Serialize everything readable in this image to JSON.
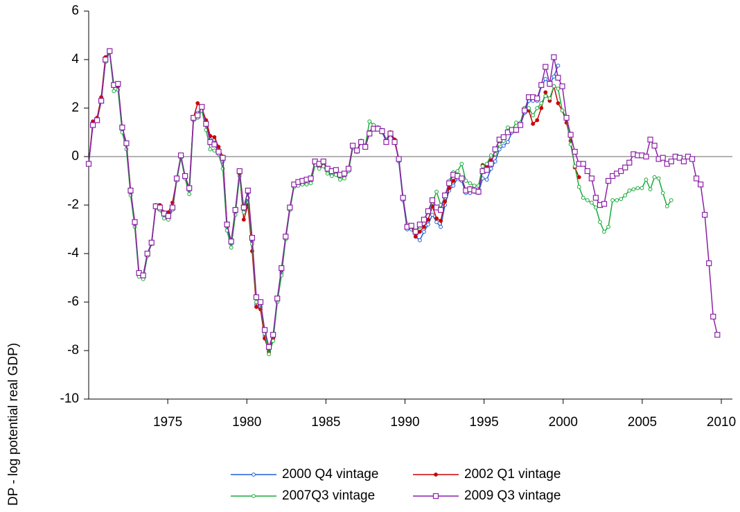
{
  "chart_data": {
    "type": "line",
    "y_label": "DP - log potential real GDP)",
    "x": [
      1970,
      1970.265,
      1970.53,
      1970.795,
      1971.06,
      1971.325,
      1971.59,
      1971.855,
      1972.12,
      1972.385,
      1972.65,
      1972.915,
      1973.18,
      1973.445,
      1973.71,
      1973.975,
      1974.24,
      1974.505,
      1974.77,
      1975.035,
      1975.3,
      1975.565,
      1975.83,
      1976.095,
      1976.36,
      1976.625,
      1976.89,
      1977.155,
      1977.42,
      1977.685,
      1977.95,
      1978.215,
      1978.48,
      1978.745,
      1979.01,
      1979.275,
      1979.54,
      1979.805,
      1980.07,
      1980.335,
      1980.6,
      1980.865,
      1981.13,
      1981.395,
      1981.66,
      1981.925,
      1982.19,
      1982.455,
      1982.72,
      1982.985,
      1983.25,
      1983.515,
      1983.78,
      1984.045,
      1984.31,
      1984.575,
      1984.84,
      1985.105,
      1985.37,
      1985.635,
      1985.9,
      1986.165,
      1986.43,
      1986.695,
      1986.96,
      1987.225,
      1987.49,
      1987.755,
      1988.02,
      1988.285,
      1988.55,
      1988.815,
      1989.08,
      1989.345,
      1989.61,
      1989.875,
      1990.14,
      1990.405,
      1990.67,
      1990.935,
      1991.2,
      1991.465,
      1991.73,
      1991.995,
      1992.26,
      1992.525,
      1992.79,
      1993.055,
      1993.32,
      1993.585,
      1993.85,
      1994.115,
      1994.38,
      1994.645,
      1994.91,
      1995.175,
      1995.44,
      1995.705,
      1995.97,
      1996.235,
      1996.5,
      1996.765,
      1997.03,
      1997.295,
      1997.56,
      1997.825,
      1998.09,
      1998.355,
      1998.62,
      1998.885,
      1999.15,
      1999.415,
      1999.68,
      1999.945,
      2000.21,
      2000.475,
      2000.74,
      2001.005,
      2001.27,
      2001.535,
      2001.8,
      2002.065,
      2002.33,
      2002.595,
      2002.86,
      2003.125,
      2003.39,
      2003.655,
      2003.92,
      2004.185,
      2004.45,
      2004.715,
      2004.98,
      2005.245,
      2005.51,
      2005.775,
      2006.04,
      2006.305,
      2006.57,
      2006.835,
      2007.1,
      2007.365,
      2007.63,
      2007.895,
      2008.16,
      2008.425,
      2008.69,
      2008.955,
      2009.22,
      2009.485,
      2009.75
    ],
    "series": [
      {
        "name": "2000 Q4 vintage",
        "color": "#1f5fd6",
        "marker": "open-circle",
        "values": [
          -0.3,
          1.4,
          1.5,
          2.3,
          3.9,
          4.3,
          2.9,
          2.9,
          1.1,
          0.5,
          -1.5,
          -2.8,
          -4.9,
          -5.0,
          -4.1,
          -3.6,
          -2.1,
          -2.2,
          -2.4,
          -2.5,
          -2.1,
          -0.95,
          0.0,
          -0.85,
          -1.4,
          1.5,
          1.8,
          2.0,
          1.4,
          0.7,
          0.7,
          0.3,
          -0.2,
          -2.9,
          -3.6,
          -2.3,
          -0.7,
          -2.2,
          -1.5,
          -3.5,
          -6.1,
          -6.2,
          -7.4,
          -8.0,
          -7.5,
          -6.0,
          -4.8,
          -3.4,
          -2.2,
          -1.2,
          -1.1,
          -1.1,
          -1.0,
          -1.0,
          -0.3,
          -0.4,
          -0.3,
          -0.6,
          -0.7,
          -0.6,
          -0.8,
          -0.8,
          -0.6,
          0.4,
          0.2,
          0.6,
          0.4,
          1.0,
          1.3,
          1.2,
          1.1,
          0.7,
          1.0,
          0.7,
          -0.2,
          -1.8,
          -3.0,
          -3.0,
          -3.3,
          -3.45,
          -3.1,
          -2.8,
          -2.4,
          -2.7,
          -2.9,
          -2.0,
          -1.4,
          -1.2,
          -0.9,
          -1.0,
          -1.5,
          -1.5,
          -1.45,
          -1.5,
          -0.9,
          -0.95,
          -0.5,
          -0.2,
          0.3,
          0.45,
          0.6,
          1.0,
          1.05,
          1.3,
          1.8,
          2.3,
          2.3,
          2.3,
          2.9,
          3.2,
          3.0,
          3.3,
          3.75,
          null,
          null,
          null,
          null,
          null,
          null,
          null,
          null,
          null,
          null,
          null,
          null,
          null,
          null,
          null,
          null,
          null,
          null,
          null,
          null,
          null,
          null,
          null,
          null,
          null,
          null,
          null,
          null,
          null,
          null,
          null,
          null,
          null,
          null,
          null,
          null,
          null,
          null
        ]
      },
      {
        "name": "2002 Q1 vintage",
        "color": "#cc0000",
        "marker": "filled-circle",
        "values": [
          -0.3,
          1.45,
          1.6,
          2.45,
          4.1,
          4.3,
          2.9,
          2.9,
          1.2,
          0.55,
          -1.4,
          -2.75,
          -4.85,
          -4.9,
          -4.0,
          -3.6,
          -2.0,
          -2.0,
          -2.3,
          -2.3,
          -1.9,
          -0.95,
          0.0,
          -0.85,
          -1.3,
          1.6,
          2.2,
          2.0,
          1.5,
          0.85,
          0.8,
          0.4,
          0.0,
          -2.8,
          -3.5,
          -2.2,
          -0.7,
          -2.6,
          -2.0,
          -3.9,
          -6.2,
          -6.3,
          -7.5,
          -8.05,
          -7.5,
          -5.9,
          -4.7,
          -3.3,
          -2.1,
          -1.2,
          -1.1,
          -1.05,
          -1.0,
          -1.0,
          -0.3,
          -0.4,
          -0.3,
          -0.5,
          -0.6,
          -0.55,
          -0.8,
          -0.75,
          -0.5,
          0.45,
          0.25,
          0.65,
          0.45,
          1.0,
          1.2,
          1.2,
          1.05,
          0.65,
          1.0,
          0.7,
          -0.1,
          -1.7,
          -2.9,
          -2.9,
          -3.3,
          -3.1,
          -2.9,
          -2.6,
          -2.05,
          -2.55,
          -2.65,
          -1.85,
          -1.3,
          -1.0,
          -0.8,
          -0.9,
          -1.4,
          -1.3,
          -1.35,
          -1.4,
          -0.35,
          -0.4,
          -0.15,
          0.1,
          0.6,
          0.8,
          1.0,
          1.1,
          1.1,
          1.35,
          2.0,
          1.9,
          1.35,
          1.5,
          2.0,
          2.65,
          2.3,
          2.9,
          2.2,
          1.9,
          1.4,
          0.65,
          -0.45,
          -0.85,
          null,
          null,
          null,
          null,
          null,
          null,
          null,
          null,
          null,
          null,
          null,
          null,
          null,
          null,
          null,
          null,
          null,
          null,
          null,
          null,
          null,
          null,
          null,
          null,
          null,
          null,
          null,
          null,
          null,
          null,
          null,
          null,
          null
        ]
      },
      {
        "name": "2007Q3 vintage",
        "color": "#1aaa3a",
        "marker": "open-circle",
        "values": [
          -0.3,
          1.3,
          1.5,
          2.3,
          3.9,
          4.3,
          2.7,
          2.75,
          1.0,
          0.3,
          -1.6,
          -2.9,
          -4.95,
          -5.05,
          -4.1,
          -3.55,
          -2.1,
          -2.2,
          -2.55,
          -2.6,
          -2.2,
          -1.0,
          -0.05,
          -0.9,
          -1.55,
          1.5,
          1.6,
          1.9,
          1.1,
          0.3,
          0.25,
          0.1,
          -0.5,
          -3.05,
          -3.75,
          -2.4,
          -0.8,
          -2.3,
          -1.7,
          -3.6,
          -6.0,
          -6.1,
          -7.3,
          -8.15,
          -7.6,
          -6.0,
          -4.9,
          -3.4,
          -2.2,
          -1.25,
          -1.2,
          -1.15,
          -1.15,
          -1.1,
          -0.35,
          -0.5,
          -0.4,
          -0.7,
          -0.8,
          -0.75,
          -0.95,
          -0.9,
          -0.6,
          0.35,
          0.2,
          0.65,
          0.45,
          1.45,
          1.3,
          1.2,
          1.0,
          0.65,
          0.95,
          0.6,
          -0.1,
          -1.7,
          -2.8,
          -2.9,
          -3.05,
          -2.9,
          -2.6,
          -2.3,
          -1.9,
          -1.45,
          -2.0,
          -1.7,
          -1.0,
          -0.65,
          -0.6,
          -0.3,
          -1.0,
          -1.1,
          -1.2,
          -1.2,
          -0.4,
          -0.3,
          0.05,
          0.1,
          0.5,
          0.65,
          1.2,
          1.1,
          1.4,
          1.4,
          2.0,
          2.0,
          1.7,
          2.0,
          2.2,
          2.5,
          2.4,
          2.9,
          2.8,
          1.9,
          1.6,
          0.5,
          -0.4,
          -1.25,
          -1.7,
          -1.8,
          -1.9,
          -2.1,
          -2.7,
          -3.1,
          -2.9,
          -1.8,
          -1.8,
          -1.75,
          -1.6,
          -1.4,
          -1.35,
          -1.3,
          -1.3,
          -0.95,
          -1.35,
          -0.85,
          -0.9,
          -1.5,
          -2.05,
          -1.8,
          null,
          null,
          null,
          null,
          null,
          null,
          null,
          null,
          null,
          null,
          null
        ]
      },
      {
        "name": "2009 Q3 vintage",
        "color": "#8b1fa6",
        "marker": "open-square",
        "values": [
          -0.3,
          1.3,
          1.5,
          2.3,
          4.0,
          4.35,
          2.95,
          3.0,
          1.2,
          0.55,
          -1.4,
          -2.7,
          -4.8,
          -4.9,
          -4.0,
          -3.55,
          -2.05,
          -2.1,
          -2.35,
          -2.45,
          -2.1,
          -0.9,
          0.05,
          -0.8,
          -1.3,
          1.6,
          1.7,
          2.05,
          1.35,
          0.6,
          0.5,
          0.2,
          -0.05,
          -2.8,
          -3.5,
          -2.2,
          -0.6,
          -2.1,
          -1.4,
          -3.35,
          -5.8,
          -6.0,
          -7.15,
          -7.85,
          -7.35,
          -5.85,
          -4.6,
          -3.3,
          -2.1,
          -1.15,
          -1.05,
          -1.0,
          -0.95,
          -0.9,
          -0.2,
          -0.3,
          -0.2,
          -0.5,
          -0.6,
          -0.55,
          -0.75,
          -0.7,
          -0.5,
          0.45,
          0.25,
          0.6,
          0.4,
          0.95,
          1.15,
          1.15,
          1.05,
          0.6,
          0.95,
          0.6,
          -0.1,
          -1.7,
          -2.9,
          -2.85,
          -3.1,
          -2.8,
          -2.6,
          -2.25,
          -1.8,
          -2.1,
          -2.2,
          -1.6,
          -1.1,
          -0.75,
          -0.8,
          -0.9,
          -1.4,
          -1.35,
          -1.4,
          -1.45,
          -0.6,
          -0.55,
          -0.3,
          0.3,
          0.7,
          0.8,
          1.0,
          1.1,
          1.1,
          1.3,
          1.9,
          2.45,
          2.45,
          2.4,
          2.95,
          3.7,
          3.0,
          4.1,
          3.25,
          2.9,
          1.6,
          0.9,
          0.2,
          -0.3,
          -0.3,
          -0.6,
          -0.9,
          -1.7,
          -2.0,
          -1.95,
          -1.0,
          -0.8,
          -0.7,
          -0.6,
          -0.45,
          -0.25,
          0.1,
          0.05,
          0.05,
          0.0,
          0.7,
          0.45,
          -0.1,
          -0.05,
          -0.3,
          -0.2,
          0.0,
          -0.05,
          -0.2,
          0.0,
          -0.1,
          -0.9,
          -1.15,
          -2.4,
          -4.4,
          -6.6,
          -7.35
        ]
      }
    ],
    "xlim": [
      1970,
      2010.7
    ],
    "xticks": [
      1975,
      1980,
      1985,
      1990,
      1995,
      2000,
      2005,
      2010
    ],
    "ylim": [
      -10,
      6
    ],
    "yticks": [
      -10,
      -8,
      -6,
      -4,
      -2,
      0,
      2,
      4,
      6
    ],
    "zero_line": true,
    "grid": false,
    "legend": "bottom"
  }
}
